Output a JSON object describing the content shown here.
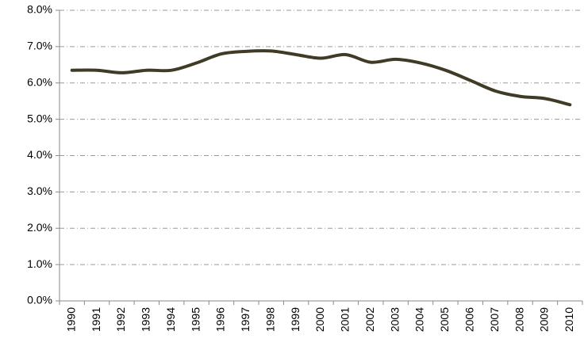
{
  "chart_data": {
    "type": "line",
    "categories": [
      "1990",
      "1991",
      "1992",
      "1993",
      "1994",
      "1995",
      "1996",
      "1997",
      "1998",
      "1999",
      "2000",
      "2001",
      "2002",
      "2003",
      "2004",
      "2005",
      "2006",
      "2007",
      "2008",
      "2009",
      "2010"
    ],
    "series": [
      {
        "color": "#3f3b26",
        "values": [
          6.35,
          6.35,
          6.28,
          6.35,
          6.35,
          6.55,
          6.8,
          6.87,
          6.88,
          6.78,
          6.68,
          6.78,
          6.57,
          6.65,
          6.55,
          6.35,
          6.07,
          5.78,
          5.63,
          5.57,
          5.4
        ]
      }
    ],
    "ylim": [
      0,
      8
    ],
    "yticks": [
      {
        "value": 0,
        "label": "0.0%"
      },
      {
        "value": 1,
        "label": "1.0%"
      },
      {
        "value": 2,
        "label": "2.0%"
      },
      {
        "value": 3,
        "label": "3.0%"
      },
      {
        "value": 4,
        "label": "4.0%"
      },
      {
        "value": 5,
        "label": "5.0%"
      },
      {
        "value": 6,
        "label": "6.0%"
      },
      {
        "value": 7,
        "label": "7.0%"
      },
      {
        "value": 8,
        "label": "8.0%"
      }
    ],
    "grid": true
  }
}
